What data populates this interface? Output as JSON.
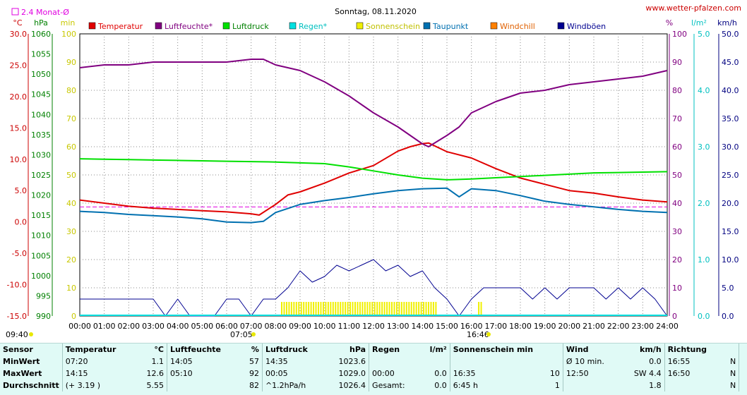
{
  "page": {
    "title": "Sonntag, 08.11.2020",
    "site": "www.wetter-pfalzen.com",
    "avg_legend": "2.4 Monat-Ø",
    "time_left": "09:40",
    "sunrise": "07:05",
    "sunset": "16:46"
  },
  "colors": {
    "temperature": "#e00000",
    "humidity": "#800080",
    "pressure": "#00e000",
    "rain": "#00e0e0",
    "sunshine": "#f0f000",
    "dewpoint": "#0070b0",
    "windchill": "#ff8000",
    "gust": "#000090",
    "avg_line": "#e000e0"
  },
  "legend": [
    {
      "label": "Temperatur",
      "color": "#e00000",
      "text_color": "#e00000"
    },
    {
      "label": "Luftfeuchte*",
      "color": "#800080",
      "text_color": "#800080"
    },
    {
      "label": "Luftdruck",
      "color": "#00e000",
      "text_color": "#008000"
    },
    {
      "label": "Regen*",
      "color": "#00e0e0",
      "text_color": "#00c0c0"
    },
    {
      "label": "Sonnenschein",
      "color": "#f0f000",
      "text_color": "#c0c000"
    },
    {
      "label": "Taupunkt",
      "color": "#0070b0",
      "text_color": "#0070b0"
    },
    {
      "label": "Windchill",
      "color": "#ff8000",
      "text_color": "#e06000"
    },
    {
      "label": "Windböen",
      "color": "#000090",
      "text_color": "#000090"
    }
  ],
  "chart_data": {
    "type": "line",
    "title": "Sonntag, 08.11.2020",
    "x_ticks": [
      "00:00",
      "01:00",
      "02:00",
      "03:00",
      "04:00",
      "05:00",
      "06:00",
      "07:00",
      "08:00",
      "09:00",
      "10:00",
      "11:00",
      "12:00",
      "13:00",
      "14:00",
      "15:00",
      "16:00",
      "17:00",
      "18:00",
      "19:00",
      "20:00",
      "21:00",
      "22:00",
      "23:00",
      "24:00"
    ],
    "axes": {
      "temperature": {
        "unit": "°C",
        "range": [
          -15,
          30
        ],
        "ticks": [
          "30.0",
          "25.0",
          "20.0",
          "15.0",
          "10.0",
          "5.0",
          "0.0",
          "-5.0",
          "-10.0",
          "-15.0"
        ]
      },
      "pressure": {
        "unit": "hPa",
        "range": [
          990,
          1060
        ],
        "ticks": [
          "1060",
          "1055",
          "1050",
          "1045",
          "1040",
          "1035",
          "1030",
          "1025",
          "1020",
          "1015",
          "1010",
          "1005",
          "1000",
          "995",
          "990"
        ]
      },
      "sunshine": {
        "unit": "min",
        "range": [
          0,
          100
        ],
        "ticks": [
          "100",
          "90",
          "80",
          "70",
          "60",
          "50",
          "40",
          "30",
          "20",
          "10",
          "0"
        ]
      },
      "humidity": {
        "unit": "%",
        "range": [
          0,
          100
        ],
        "ticks": [
          "100",
          "90",
          "80",
          "70",
          "60",
          "50",
          "40",
          "30",
          "20",
          "10",
          "0"
        ]
      },
      "rain": {
        "unit": "l/m²",
        "range": [
          0,
          5
        ],
        "ticks": [
          "5.0",
          "4.0",
          "3.0",
          "2.0",
          "1.0",
          "0.0"
        ]
      },
      "wind": {
        "unit": "km/h",
        "range": [
          0,
          50
        ],
        "ticks": [
          "50.0",
          "45.0",
          "40.0",
          "35.0",
          "30.0",
          "25.0",
          "20.0",
          "15.0",
          "10.0",
          "5.0",
          "0.0"
        ]
      }
    },
    "avg_temperature": 2.4,
    "series": [
      {
        "name": "Temperatur",
        "axis": "temperature",
        "x": [
          0,
          1,
          2,
          3,
          4,
          5,
          6,
          7,
          7.33,
          8,
          8.5,
          9,
          10,
          11,
          12,
          13,
          13.5,
          14,
          14.25,
          15,
          16,
          17,
          18,
          19,
          20,
          21,
          22,
          23,
          24
        ],
        "y": [
          3.5,
          3.0,
          2.5,
          2.2,
          2.0,
          1.8,
          1.6,
          1.3,
          1.1,
          2.8,
          4.3,
          4.8,
          6.2,
          7.8,
          9.0,
          11.3,
          12.0,
          12.5,
          12.6,
          11.2,
          10.2,
          8.5,
          7.0,
          6.0,
          5.0,
          4.6,
          4.0,
          3.5,
          3.2
        ]
      },
      {
        "name": "Luftfeuchte*",
        "axis": "humidity",
        "x": [
          0,
          1,
          2,
          3,
          4,
          5,
          6,
          7,
          7.5,
          8,
          9,
          10,
          11,
          12,
          13,
          14,
          14.25,
          15,
          15.5,
          16,
          17,
          18,
          19,
          20,
          21,
          22,
          23,
          24
        ],
        "y": [
          88,
          89,
          89,
          90,
          90,
          90,
          90,
          91,
          91,
          89,
          87,
          83,
          78,
          72,
          67,
          61,
          60,
          64,
          67,
          72,
          76,
          79,
          80,
          82,
          83,
          84,
          85,
          87
        ]
      },
      {
        "name": "Luftdruck",
        "axis": "pressure",
        "x": [
          0,
          1,
          2,
          3,
          4,
          5,
          6,
          7,
          8,
          9,
          10,
          11,
          12,
          13,
          14,
          15,
          16,
          17,
          18,
          19,
          20,
          21,
          22,
          23,
          24
        ],
        "y": [
          1029.0,
          1028.9,
          1028.8,
          1028.7,
          1028.6,
          1028.5,
          1028.4,
          1028.3,
          1028.2,
          1028.0,
          1027.8,
          1027.0,
          1026.0,
          1025.0,
          1024.2,
          1023.8,
          1024.0,
          1024.3,
          1024.6,
          1024.9,
          1025.2,
          1025.5,
          1025.6,
          1025.7,
          1025.8
        ]
      },
      {
        "name": "Taupunkt",
        "axis": "temperature",
        "x": [
          0,
          1,
          2,
          3,
          4,
          5,
          6,
          7,
          7.5,
          8,
          9,
          10,
          11,
          12,
          13,
          14,
          15,
          15.5,
          16,
          17,
          18,
          19,
          20,
          21,
          22,
          23,
          24
        ],
        "y": [
          1.7,
          1.5,
          1.2,
          1.0,
          0.8,
          0.5,
          0.0,
          -0.1,
          0.1,
          1.5,
          2.8,
          3.4,
          3.9,
          4.5,
          5.0,
          5.3,
          5.4,
          4.0,
          5.3,
          5.0,
          4.2,
          3.3,
          2.8,
          2.4,
          2.0,
          1.7,
          1.5
        ]
      },
      {
        "name": "Windböen",
        "axis": "wind",
        "x": [
          0,
          0.5,
          1,
          1.5,
          2,
          2.5,
          3,
          3.5,
          4,
          4.5,
          5,
          5.5,
          6,
          6.5,
          7,
          7.5,
          8,
          8.5,
          9,
          9.5,
          10,
          10.5,
          11,
          11.5,
          12,
          12.5,
          13,
          13.5,
          14,
          14.5,
          15,
          15.5,
          16,
          16.5,
          17,
          17.5,
          18,
          18.5,
          19,
          19.5,
          20,
          20.5,
          21,
          21.5,
          22,
          22.5,
          23,
          23.5,
          24
        ],
        "y": [
          3,
          3,
          3,
          3,
          3,
          3,
          3,
          0,
          3,
          0,
          0,
          0,
          3,
          3,
          0,
          3,
          3,
          5,
          8,
          6,
          7,
          9,
          8,
          9,
          10,
          8,
          9,
          7,
          8,
          5,
          3,
          0,
          3,
          5,
          5,
          5,
          5,
          3,
          5,
          3,
          5,
          5,
          5,
          3,
          5,
          3,
          5,
          3,
          0
        ]
      },
      {
        "name": "Sonnenschein",
        "axis": "sunshine",
        "type": "bars",
        "from_to": [
          [
            8.25,
            14.6
          ],
          [
            16.3,
            16.5
          ]
        ],
        "value": 5
      }
    ]
  },
  "stats": {
    "headers": {
      "sensor": "Sensor",
      "temp": "Temperatur",
      "temp_unit": "°C",
      "hum": "Luftfeuchte",
      "hum_unit": "%",
      "press": "Luftdruck",
      "press_unit": "hPa",
      "rain": "Regen",
      "rain_unit": "l/m²",
      "sun": "Sonnenschein min",
      "wind": "Wind",
      "wind_unit": "km/h",
      "dir": "Richtung"
    },
    "rows": [
      {
        "label": "MinWert",
        "temp_t": "07:20",
        "temp_v": "1.1",
        "hum_t": "14:05",
        "hum_v": "57",
        "press_t": "14:35",
        "press_v": "1023.6",
        "rain_t": "",
        "rain_v": "",
        "sun_t": "",
        "sun_v": "",
        "wind_t": "Ø 10 min.",
        "wind_v": "0.0",
        "dir_t": "16:55",
        "dir_v": "N"
      },
      {
        "label": "MaxWert",
        "temp_t": "14:15",
        "temp_v": "12.6",
        "hum_t": "05:10",
        "hum_v": "92",
        "press_t": "00:05",
        "press_v": "1029.0",
        "rain_t": "00:00",
        "rain_v": "0.0",
        "sun_t": "16:35",
        "sun_v": "10",
        "wind_t": "12:50",
        "wind_v": "SW 4.4",
        "dir_t": "16:50",
        "dir_v": "N"
      },
      {
        "label": "Durchschnitt",
        "temp_t": "(+ 3.19 )",
        "temp_v": "5.55",
        "hum_t": "",
        "hum_v": "82",
        "press_t": "^1.2hPa/h",
        "press_v": "1026.4",
        "rain_t": "Gesamt:",
        "rain_v": "0.0",
        "sun_t": "6:45 h",
        "sun_v": "1",
        "wind_t": "",
        "wind_v": "1.8",
        "dir_t": "",
        "dir_v": "N"
      }
    ]
  }
}
